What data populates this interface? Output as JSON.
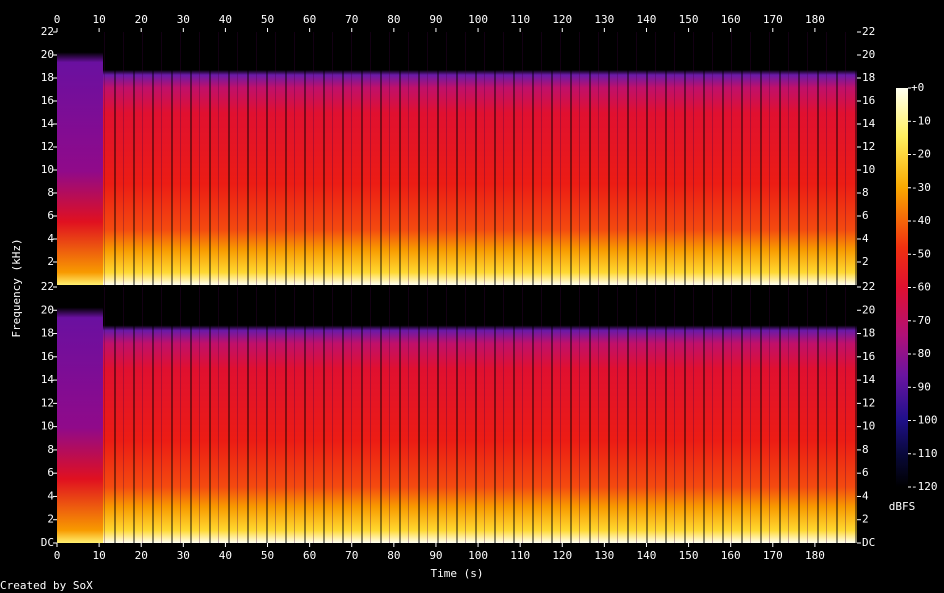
{
  "chart_data": {
    "type": "spectrogram",
    "x_label": "Time (s)",
    "y_label": "Frequency (kHz)",
    "footer": "Created by SoX",
    "xlim": [
      0,
      190
    ],
    "xticks": [
      0,
      10,
      20,
      30,
      40,
      50,
      60,
      70,
      80,
      90,
      100,
      110,
      120,
      130,
      140,
      150,
      160,
      170,
      180
    ],
    "channels": [
      {
        "ylim": [
          0,
          22
        ],
        "yticks": [
          2,
          4,
          6,
          8,
          10,
          12,
          14,
          16,
          18,
          20,
          22
        ]
      },
      {
        "ylim": [
          0,
          22
        ],
        "yticks": [
          {
            "value": 0,
            "label": "DC"
          },
          2,
          4,
          6,
          8,
          10,
          12,
          14,
          16,
          18,
          20,
          22
        ]
      }
    ],
    "colorbar": {
      "label": "dBFS",
      "zlim": [
        -120,
        0
      ],
      "zticks": [
        {
          "value": 0,
          "label": "+0"
        },
        -10,
        -20,
        -30,
        -40,
        -50,
        -60,
        -70,
        -80,
        -90,
        -100,
        -110,
        -120
      ]
    }
  }
}
